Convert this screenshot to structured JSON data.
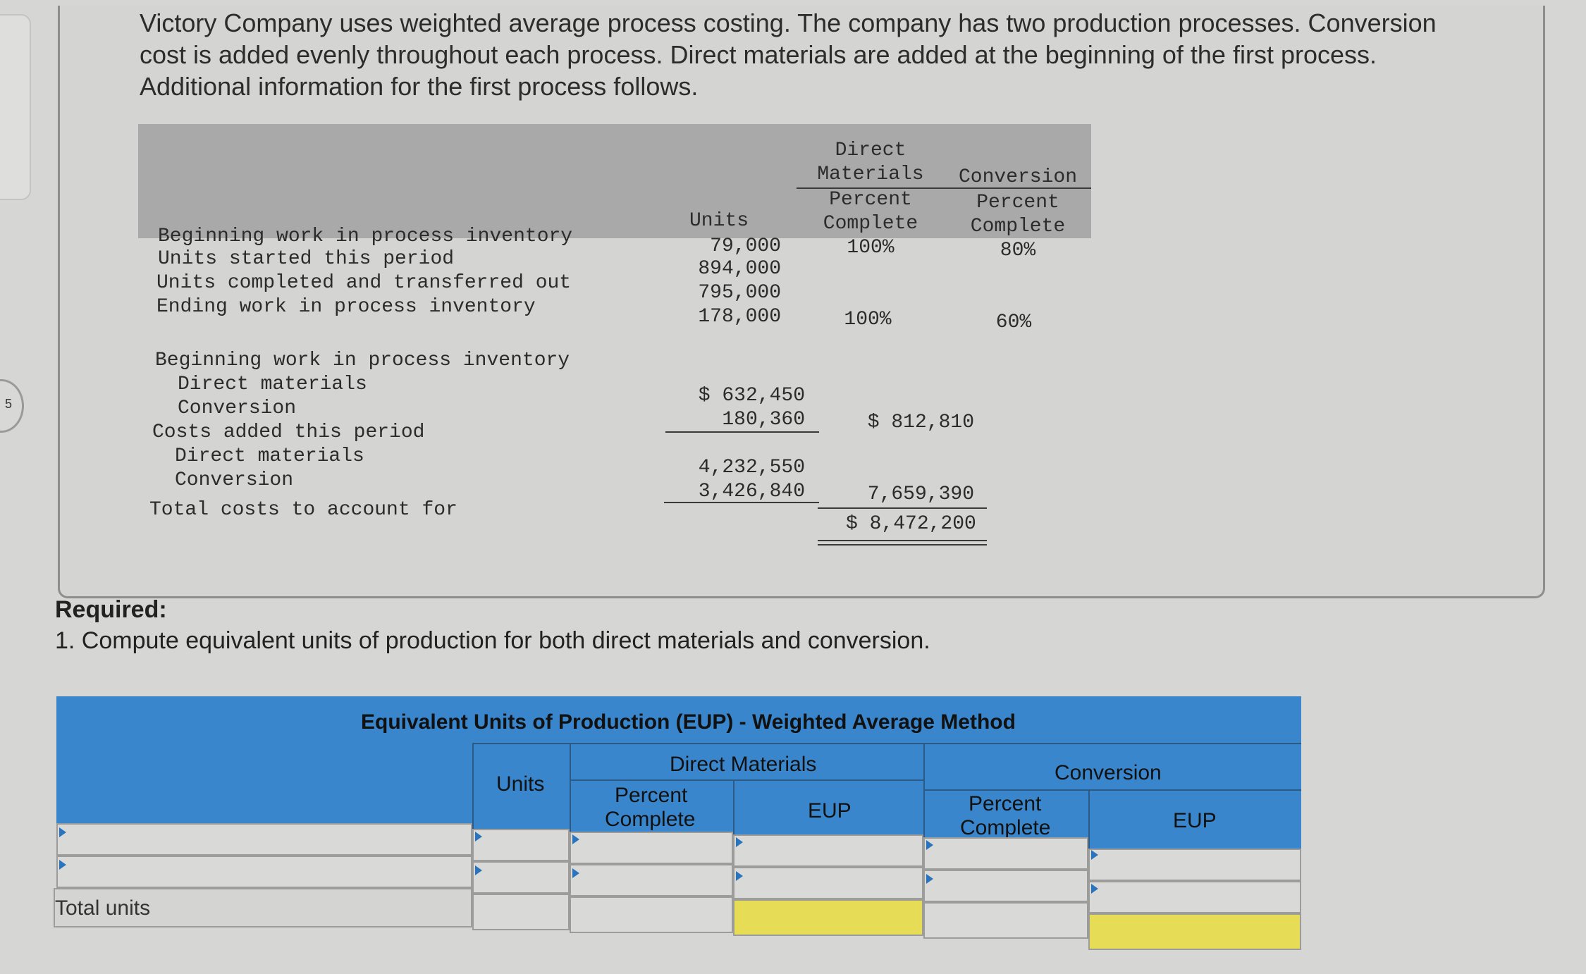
{
  "badge": "5",
  "intro_text": "Victory Company uses weighted average process costing. The company has two production processes. Conversion cost is added evenly throughout each process. Direct materials are added at the beginning of the first process. Additional information for the first process follows.",
  "units_table": {
    "headers": {
      "units": "Units",
      "dm_top1": "Direct",
      "dm_top2": "Materials",
      "dm_pct1": "Percent",
      "dm_pct2": "Complete",
      "conv_top": "Conversion",
      "conv_pct1": "Percent",
      "conv_pct2": "Complete"
    },
    "rows": [
      {
        "label": "Beginning work in process inventory",
        "units": "79,000",
        "dm": "100%",
        "conv": "80%"
      },
      {
        "label": "Units started this period",
        "units": "894,000",
        "dm": "",
        "conv": ""
      },
      {
        "label": "Units completed and transferred out",
        "units": "795,000",
        "dm": "",
        "conv": ""
      },
      {
        "label": "Ending work in process inventory",
        "units": "178,000",
        "dm": "100%",
        "conv": "60%"
      }
    ]
  },
  "cost_table": {
    "bwip_label": "Beginning work in process inventory",
    "bwip_dm_label": "Direct materials",
    "bwip_dm_value": "$ 632,450",
    "bwip_conv_label": "Conversion",
    "bwip_conv_value": "180,360",
    "bwip_total": "$ 812,810",
    "added_label": "Costs added this period",
    "added_dm_label": "Direct materials",
    "added_dm_value": "4,232,550",
    "added_conv_label": "Conversion",
    "added_conv_value": "3,426,840",
    "added_total": "7,659,390",
    "total_label": "Total costs to account for",
    "total_value": "$ 8,472,200"
  },
  "required": {
    "label": "Required:",
    "question": "1. Compute equivalent units of production for both direct materials and conversion."
  },
  "eup_table": {
    "title": "Equivalent Units of Production (EUP) - Weighted Average Method",
    "units": "Units",
    "dm_group": "Direct Materials",
    "conv_group": "Conversion",
    "percent1": "Percent",
    "percent2": "Complete",
    "eup": "EUP",
    "total_units": "Total units"
  },
  "colors": {
    "table_header_blue": "#3a86cc",
    "highlight_yellow": "#e7dc55",
    "info_header_gray": "#a9a9a9"
  }
}
